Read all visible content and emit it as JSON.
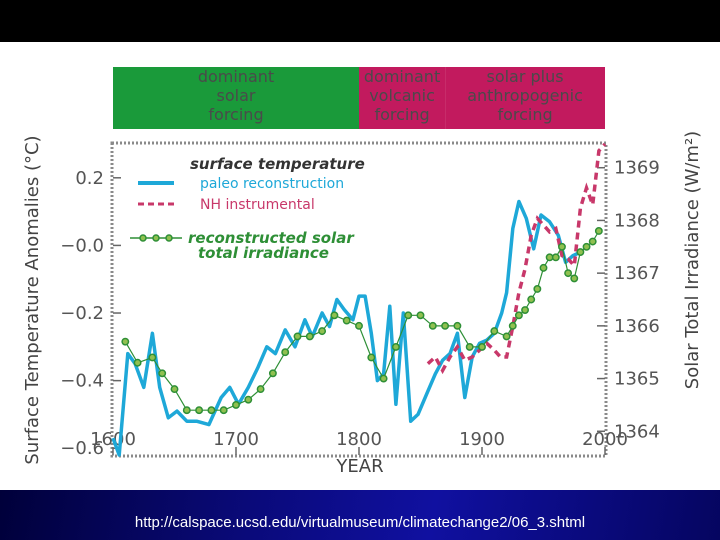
{
  "footer": {
    "url": "http://calspace.ucsd.edu/virtualmuseum/climatechange2/06_3.shtml"
  },
  "forcing_bands": [
    {
      "lines": [
        "dominant",
        "solar",
        "forcing"
      ],
      "color": "#1a9a3a",
      "text_color": "#4a4a4a",
      "x_start": 1600,
      "x_end": 1800
    },
    {
      "lines": [
        "dominant",
        "volcanic",
        "forcing"
      ],
      "color": "#c21a5e",
      "text_color": "#4a4a4a",
      "x_start": 1800,
      "x_end": 1870
    },
    {
      "lines": [
        "solar plus",
        "anthropogenic",
        "forcing"
      ],
      "color": "#c21a5e",
      "text_color": "#4a4a4a",
      "x_start": 1870,
      "x_end": 2000
    }
  ],
  "chart_data": {
    "type": "line",
    "xlabel": "YEAR",
    "ylabel": "Surface Temperature Anomalies (°C)",
    "y2label": "Solar Total Irradiance (W/m²)",
    "xlim": [
      1600,
      2000
    ],
    "ylim": [
      -0.62,
      0.3
    ],
    "y2lim": [
      1363.55,
      1369.45
    ],
    "xticks": [
      1600,
      1700,
      1800,
      1900,
      2000
    ],
    "xtick_labels": [
      "1600",
      "1700",
      "1800",
      "1900",
      "2000"
    ],
    "yticks": [
      0.2,
      0.0,
      -0.2,
      -0.4,
      -0.6
    ],
    "ytick_labels": [
      "0.2",
      "−0.0",
      "−0.2",
      "−0.4",
      "−0.6"
    ],
    "y2ticks": [
      1369,
      1368,
      1367,
      1366,
      1365,
      1364
    ],
    "y2tick_labels": [
      "1369",
      "1368",
      "1367",
      "1366",
      "1365",
      "1364"
    ],
    "legend": {
      "title1": "surface temperature",
      "item1": "paleo reconstruction",
      "item2": "NH instrumental",
      "title2_line1": "reconstructed solar",
      "title2_line2": "total irradiance"
    },
    "series": [
      {
        "name": "paleo reconstruction",
        "axis": "left",
        "color": "#1ea8d8",
        "style": "solid",
        "x": [
          1600,
          1605,
          1612,
          1618,
          1625,
          1632,
          1638,
          1645,
          1652,
          1660,
          1668,
          1678,
          1688,
          1695,
          1702,
          1710,
          1718,
          1725,
          1732,
          1740,
          1748,
          1756,
          1762,
          1770,
          1776,
          1782,
          1788,
          1795,
          1800,
          1805,
          1810,
          1815,
          1820,
          1825,
          1830,
          1836,
          1842,
          1848,
          1855,
          1862,
          1868,
          1874,
          1880,
          1886,
          1892,
          1898,
          1904,
          1910,
          1916,
          1920,
          1925,
          1930,
          1936,
          1942,
          1948,
          1955,
          1962,
          1968,
          1974,
          1980
        ],
        "y": [
          -0.57,
          -0.62,
          -0.32,
          -0.35,
          -0.42,
          -0.26,
          -0.42,
          -0.51,
          -0.49,
          -0.52,
          -0.52,
          -0.53,
          -0.45,
          -0.42,
          -0.47,
          -0.42,
          -0.36,
          -0.3,
          -0.32,
          -0.25,
          -0.3,
          -0.22,
          -0.27,
          -0.2,
          -0.24,
          -0.16,
          -0.19,
          -0.22,
          -0.15,
          -0.15,
          -0.26,
          -0.4,
          -0.38,
          -0.18,
          -0.47,
          -0.2,
          -0.52,
          -0.5,
          -0.44,
          -0.38,
          -0.34,
          -0.32,
          -0.26,
          -0.45,
          -0.33,
          -0.29,
          -0.28,
          -0.26,
          -0.2,
          -0.14,
          0.05,
          0.13,
          0.08,
          -0.01,
          0.09,
          0.07,
          0.03,
          -0.05,
          -0.03,
          -0.02
        ]
      },
      {
        "name": "NH instrumental",
        "axis": "left",
        "color": "#c8386a",
        "style": "dashed",
        "x": [
          1856,
          1862,
          1868,
          1874,
          1880,
          1886,
          1892,
          1898,
          1904,
          1910,
          1915,
          1920,
          1925,
          1930,
          1935,
          1940,
          1945,
          1950,
          1955,
          1960,
          1965,
          1970,
          1975,
          1980,
          1985,
          1990,
          1995,
          2000
        ],
        "y": [
          -0.35,
          -0.33,
          -0.37,
          -0.33,
          -0.3,
          -0.34,
          -0.33,
          -0.31,
          -0.29,
          -0.31,
          -0.33,
          -0.33,
          -0.24,
          -0.14,
          -0.07,
          0.03,
          0.08,
          0.06,
          0.04,
          0.05,
          -0.03,
          -0.04,
          -0.06,
          0.11,
          0.17,
          0.12,
          0.28,
          0.3
        ]
      },
      {
        "name": "reconstructed solar total irradiance",
        "axis": "right",
        "color": "#2e8f36",
        "marker": "#90c050",
        "style": "markers",
        "x": [
          1610,
          1620,
          1632,
          1640,
          1650,
          1660,
          1670,
          1680,
          1690,
          1700,
          1710,
          1720,
          1730,
          1740,
          1750,
          1760,
          1770,
          1780,
          1790,
          1800,
          1810,
          1820,
          1830,
          1840,
          1850,
          1860,
          1870,
          1880,
          1890,
          1900,
          1910,
          1920,
          1925,
          1930,
          1935,
          1940,
          1945,
          1950,
          1955,
          1960,
          1965,
          1970,
          1975,
          1980,
          1985,
          1990,
          1995
        ],
        "y": [
          1365.7,
          1365.3,
          1365.4,
          1365.1,
          1364.8,
          1364.4,
          1364.4,
          1364.4,
          1364.4,
          1364.5,
          1364.6,
          1364.8,
          1365.1,
          1365.5,
          1365.8,
          1365.8,
          1365.9,
          1366.2,
          1366.1,
          1366.0,
          1365.4,
          1365.0,
          1365.6,
          1366.2,
          1366.2,
          1366.0,
          1366.0,
          1366.0,
          1365.6,
          1365.6,
          1365.9,
          1365.8,
          1366.0,
          1366.2,
          1366.3,
          1366.5,
          1366.7,
          1367.1,
          1367.3,
          1367.3,
          1367.5,
          1367.0,
          1366.9,
          1367.4,
          1367.5,
          1367.6,
          1367.8
        ]
      }
    ]
  }
}
